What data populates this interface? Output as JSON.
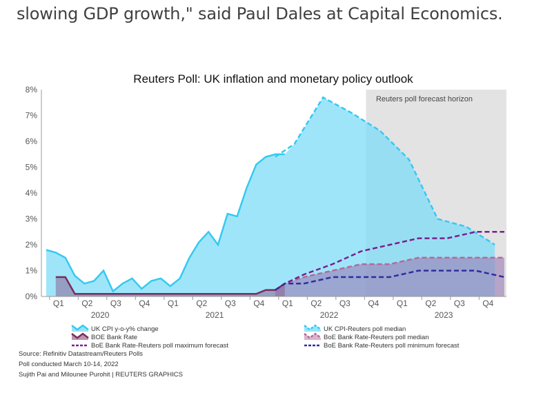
{
  "article": {
    "text": "slowing GDP growth,\" said Paul Dales at Capital Economics."
  },
  "chart_data": {
    "type": "area",
    "title": "Reuters Poll: UK inflation and monetary policy outlook",
    "forecast_label": "Reuters poll forecast horizon",
    "forecast_start_month": 33.5,
    "y_ticks": [
      "0%",
      "1%",
      "2%",
      "3%",
      "4%",
      "5%",
      "6%",
      "7%",
      "8%"
    ],
    "ylim": [
      0,
      8
    ],
    "x_unit": "months since Jan 2020 (0 = Jan 2020)",
    "xlim": [
      0,
      48
    ],
    "quarters": [
      {
        "label": "Q1",
        "m": 1
      },
      {
        "label": "Q2",
        "m": 4
      },
      {
        "label": "Q3",
        "m": 7
      },
      {
        "label": "Q4",
        "m": 10
      },
      {
        "label": "Q1",
        "m": 13
      },
      {
        "label": "Q2",
        "m": 16
      },
      {
        "label": "Q3",
        "m": 19
      },
      {
        "label": "Q4",
        "m": 22
      },
      {
        "label": "Q1",
        "m": 25
      },
      {
        "label": "Q2",
        "m": 28
      },
      {
        "label": "Q3",
        "m": 31
      },
      {
        "label": "Q4",
        "m": 34
      },
      {
        "label": "Q1",
        "m": 37
      },
      {
        "label": "Q2",
        "m": 40
      },
      {
        "label": "Q3",
        "m": 43
      },
      {
        "label": "Q4",
        "m": 46
      }
    ],
    "years": [
      {
        "label": "2020",
        "m": 5.5
      },
      {
        "label": "2021",
        "m": 17.5
      },
      {
        "label": "2022",
        "m": 29.5
      },
      {
        "label": "2023",
        "m": 41.5
      }
    ],
    "series": [
      {
        "name": "UK CPI y-o-y% change",
        "color": "#35c9f2",
        "x": [
          0,
          1,
          2,
          3,
          4,
          5,
          6,
          7,
          8,
          9,
          10,
          11,
          12,
          13,
          14,
          15,
          16,
          17,
          18,
          19,
          20,
          21,
          22,
          23,
          24,
          25
        ],
        "values": [
          1.8,
          1.7,
          1.5,
          0.8,
          0.5,
          0.6,
          1.0,
          0.2,
          0.5,
          0.7,
          0.3,
          0.6,
          0.7,
          0.4,
          0.7,
          1.5,
          2.1,
          2.5,
          2.0,
          3.2,
          3.1,
          4.2,
          5.1,
          5.4,
          5.5,
          5.5
        ]
      },
      {
        "name": "UK CPI-Reuters poll median",
        "color": "#35c9f2",
        "x": [
          24,
          26,
          29,
          32,
          35,
          38,
          41,
          44,
          47
        ],
        "values": [
          5.4,
          5.9,
          7.7,
          7.1,
          6.4,
          5.3,
          3.0,
          2.7,
          2.0
        ]
      },
      {
        "name": "BOE Bank Rate",
        "color": "#7b2a5e",
        "x": [
          1,
          2,
          3,
          4,
          5,
          6,
          7,
          8,
          9,
          10,
          11,
          12,
          13,
          14,
          15,
          16,
          17,
          18,
          19,
          20,
          21,
          22,
          23,
          24,
          25
        ],
        "values": [
          0.75,
          0.75,
          0.1,
          0.1,
          0.1,
          0.1,
          0.1,
          0.1,
          0.1,
          0.1,
          0.1,
          0.1,
          0.1,
          0.1,
          0.1,
          0.1,
          0.1,
          0.1,
          0.1,
          0.1,
          0.1,
          0.1,
          0.25,
          0.25,
          0.5
        ]
      },
      {
        "name": "BoE Bank Rate-Reuters poll median",
        "color": "#b36a98",
        "x": [
          24,
          25,
          27,
          30,
          33,
          36,
          39,
          42,
          45,
          48
        ],
        "values": [
          0.25,
          0.5,
          0.75,
          1.0,
          1.25,
          1.25,
          1.5,
          1.5,
          1.5,
          1.5
        ]
      },
      {
        "name": "BoE Bank Rate-Reuters poll maximum forecast",
        "color": "#7a1e8c",
        "x": [
          24,
          25,
          27,
          30,
          33,
          36,
          39,
          42,
          45,
          48
        ],
        "values": [
          0.25,
          0.5,
          0.85,
          1.25,
          1.75,
          2.0,
          2.25,
          2.25,
          2.5,
          2.5
        ]
      },
      {
        "name": "BoE Bank Rate-Reuters poll minimum forecast",
        "color": "#2e2e9e",
        "x": [
          24,
          25,
          27,
          30,
          33,
          36,
          39,
          42,
          45,
          48
        ],
        "values": [
          0.25,
          0.5,
          0.5,
          0.75,
          0.75,
          0.75,
          1.0,
          1.0,
          1.0,
          0.75
        ]
      }
    ],
    "legend": [
      {
        "label": "UK CPI y-o-y% change"
      },
      {
        "label": "UK CPI-Reuters poll median"
      },
      {
        "label": "BOE Bank Rate"
      },
      {
        "label": "BoE Bank Rate-Reuters poll median"
      },
      {
        "label": "BoE Bank Rate-Reuters poll maximum forecast"
      },
      {
        "label": "BoE Bank Rate-Reuters poll minimum forecast"
      }
    ]
  },
  "footer": {
    "source": "Source: Refinitiv Datastream/Reuters Polls",
    "poll": "Poll conducted March 10-14, 2022",
    "credit": "Sujith Pai and Milounee Purohit | REUTERS GRAPHICS"
  }
}
